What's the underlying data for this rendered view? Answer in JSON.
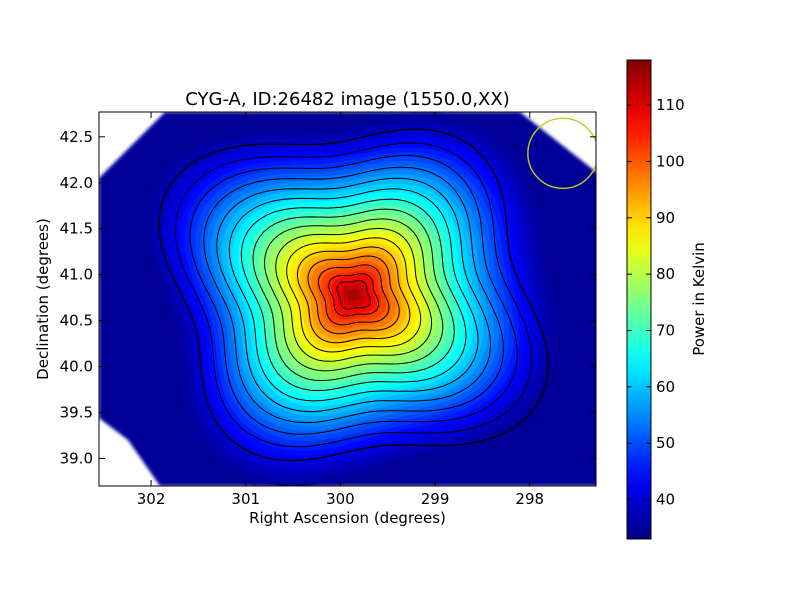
{
  "chart_data": {
    "type": "heatmap",
    "title": "CYG-A, ID:26482 image (1550.0,XX)",
    "xlabel": "Right Ascension (degrees)",
    "ylabel": "Declination (degrees)",
    "colorbar_label": "Power in Kelvin",
    "xlim": [
      302.55,
      297.3
    ],
    "ylim": [
      38.7,
      42.77
    ],
    "x_ticks": [
      302,
      301,
      300,
      299,
      298
    ],
    "x_tick_labels": [
      "302",
      "301",
      "300",
      "299",
      "298"
    ],
    "y_ticks": [
      39.0,
      39.5,
      40.0,
      40.5,
      41.0,
      41.5,
      42.0,
      42.5
    ],
    "y_tick_labels": [
      "39.0",
      "39.5",
      "40.0",
      "40.5",
      "41.0",
      "41.5",
      "42.0",
      "42.5"
    ],
    "colorbar_range": [
      33,
      118
    ],
    "colorbar_ticks": [
      40,
      50,
      60,
      70,
      80,
      90,
      100,
      110
    ],
    "colorbar_tick_labels": [
      "40",
      "50",
      "60",
      "70",
      "80",
      "90",
      "100",
      "110"
    ],
    "colormap": "jet",
    "peak": {
      "ra": 299.86,
      "dec": 40.78,
      "value": 118
    },
    "background_value": 35,
    "contour_levels": [
      40,
      45,
      50,
      55,
      60,
      65,
      70,
      75,
      80,
      85,
      90,
      95,
      100,
      105,
      110,
      114
    ],
    "beam_circle": {
      "ra": 297.65,
      "dec": 42.32,
      "radius_deg": 0.37,
      "color": "#c8c81e"
    },
    "grid": false
  }
}
